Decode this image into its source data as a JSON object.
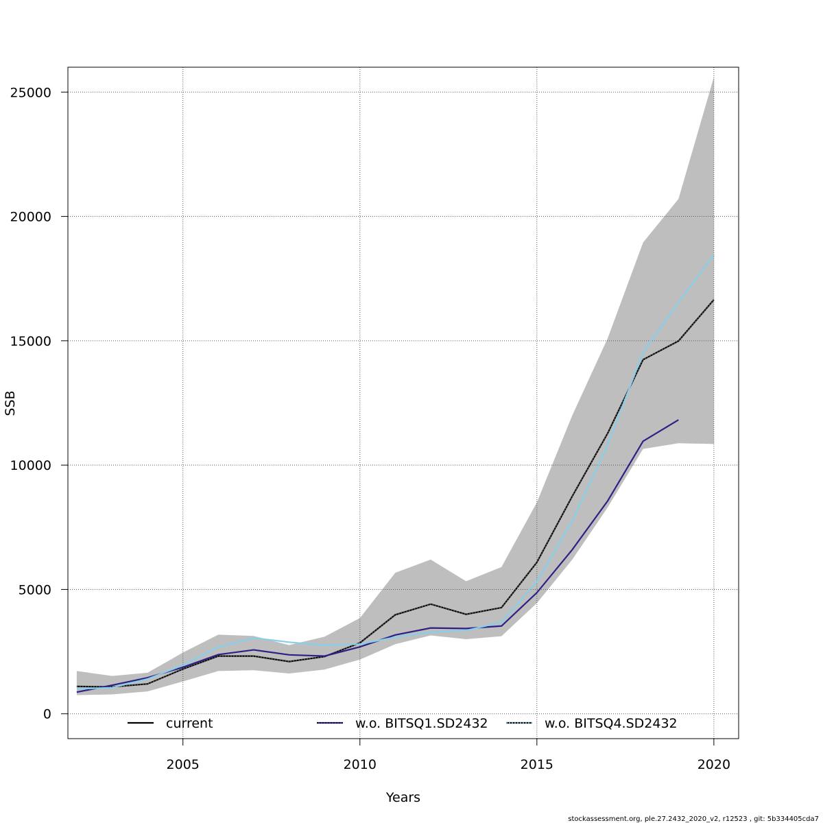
{
  "chart_data": {
    "type": "line",
    "title": "",
    "xlabel": "Years",
    "ylabel": "SSB",
    "xlim": [
      2001.75,
      2020.7
    ],
    "ylim": [
      -1000,
      26000
    ],
    "x_ticks": [
      2005,
      2010,
      2015,
      2020
    ],
    "y_ticks": [
      0,
      5000,
      10000,
      15000,
      20000,
      25000
    ],
    "grid": true,
    "legend_position": "bottom",
    "colors": {
      "band": "#bebebe",
      "current": "#000000",
      "current_overlay": "#555555",
      "wo_q1": "#2e2085",
      "wo_q4": "#87ceeb"
    },
    "confidence_band": {
      "x": [
        2002,
        2003,
        2004,
        2005,
        2006,
        2007,
        2008,
        2009,
        2010,
        2011,
        2012,
        2013,
        2014,
        2015,
        2016,
        2017,
        2018,
        2019,
        2020
      ],
      "lower": [
        750,
        780,
        900,
        1300,
        1720,
        1750,
        1620,
        1780,
        2180,
        2800,
        3150,
        3000,
        3120,
        4450,
        6200,
        8300,
        10650,
        10880,
        10850
      ],
      "upper": [
        1720,
        1520,
        1650,
        2460,
        3180,
        3130,
        2760,
        3100,
        3850,
        5670,
        6200,
        5330,
        5900,
        8500,
        12000,
        15100,
        18950,
        20700,
        25600
      ]
    },
    "series": [
      {
        "name": "current",
        "x": [
          2002,
          2003,
          2004,
          2005,
          2006,
          2007,
          2008,
          2009,
          2010,
          2011,
          2012,
          2013,
          2014,
          2015,
          2016,
          2017,
          2018,
          2019,
          2020
        ],
        "values": [
          1100,
          1080,
          1200,
          1800,
          2320,
          2320,
          2100,
          2300,
          2850,
          3980,
          4410,
          4000,
          4270,
          6090,
          8750,
          11280,
          14240,
          14990,
          16650
        ]
      },
      {
        "name": "w.o. BITSQ1.SD2432",
        "x": [
          2002,
          2003,
          2004,
          2005,
          2006,
          2007,
          2008,
          2009,
          2010,
          2011,
          2012,
          2013,
          2014,
          2015,
          2016,
          2017,
          2018,
          2019
        ],
        "values": [
          870,
          1150,
          1450,
          1870,
          2380,
          2570,
          2370,
          2320,
          2690,
          3170,
          3450,
          3430,
          3530,
          4870,
          6600,
          8560,
          10960,
          11820
        ]
      },
      {
        "name": "w.o. BITSQ4.SD2432",
        "x": [
          2002,
          2003,
          2004,
          2005,
          2006,
          2007,
          2008,
          2009,
          2010,
          2011,
          2012,
          2013,
          2014,
          2015,
          2016,
          2017,
          2018,
          2019,
          2020
        ],
        "values": [
          1000,
          1050,
          1400,
          1950,
          2680,
          3050,
          2880,
          2750,
          2800,
          3080,
          3280,
          3350,
          3680,
          5320,
          7750,
          10820,
          14530,
          16550,
          18450
        ]
      }
    ]
  },
  "footer_text": "stockassessment.org, ple.27.2432_2020_v2, r12523 , git: 5b334405cda7"
}
